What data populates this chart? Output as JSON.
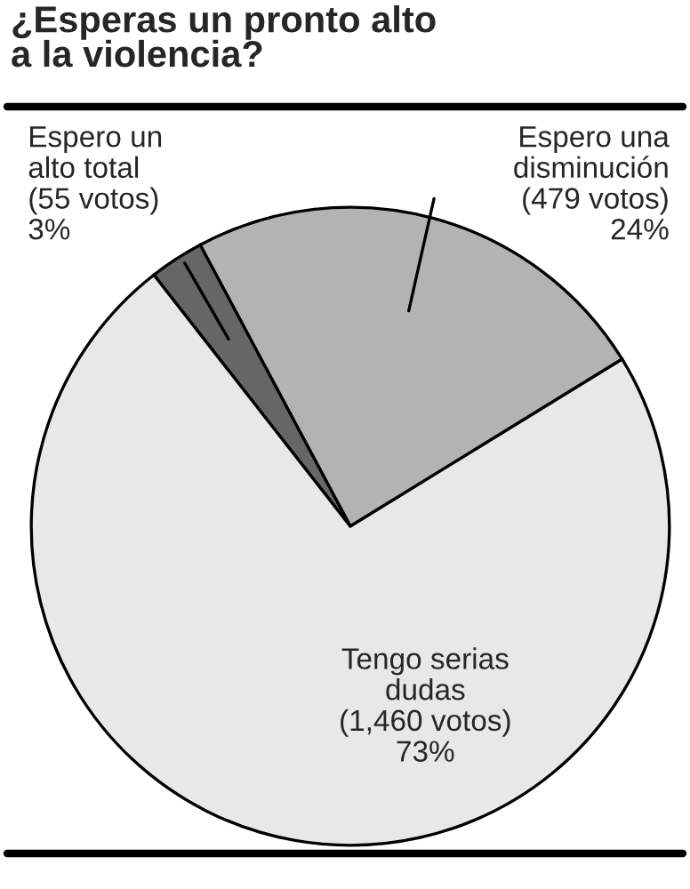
{
  "chart_data": {
    "type": "pie",
    "title": "¿Esperas un pronto alto\na la violencia?",
    "categories": [
      "Espero una\ndisminución",
      "Espero un\nalto total",
      "Tengo serias\ndudas"
    ],
    "values": [
      479,
      55,
      1460
    ],
    "value_labels": [
      "(479 votos)\n24%",
      "(55 votos)\n3%",
      "(1,460 votos)\n73%"
    ],
    "colors": [
      "#b3b3b3",
      "#666666",
      "#e8e8e8"
    ]
  }
}
